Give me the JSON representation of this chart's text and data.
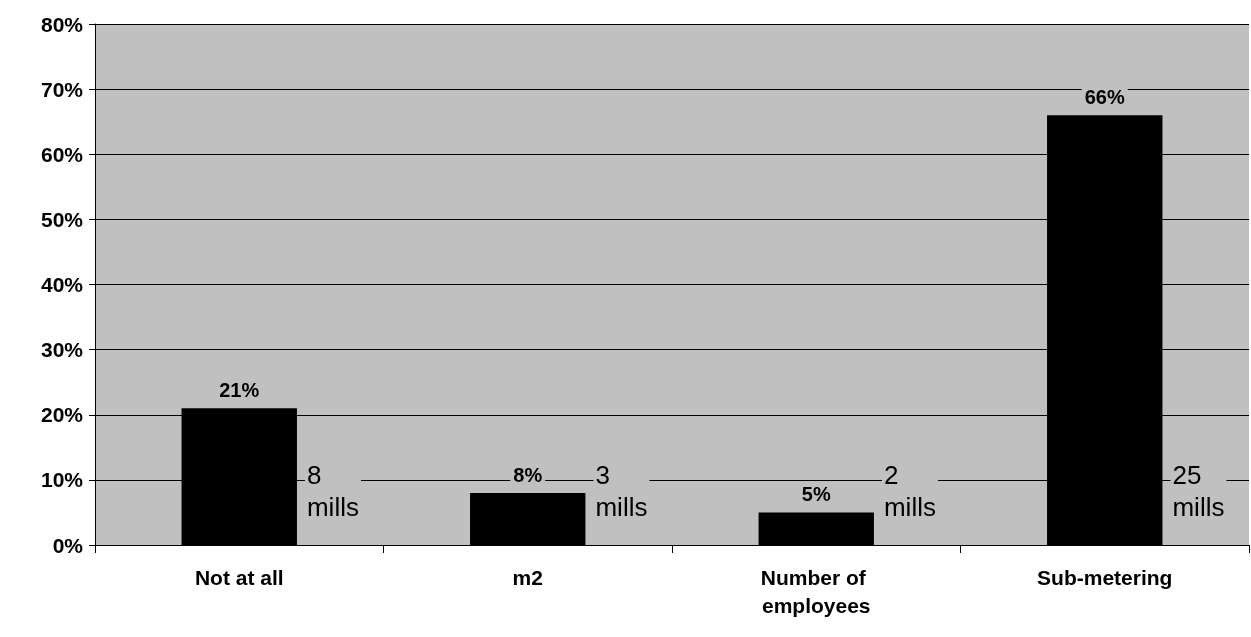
{
  "chart_data": {
    "type": "bar",
    "categories": [
      "Not at all",
      "m2",
      "Number of employees",
      "Sub-metering"
    ],
    "values": [
      21,
      8,
      5,
      66
    ],
    "color": "#000000",
    "value_labels": [
      "21%",
      "8%",
      "5%",
      "66%"
    ],
    "ylim": [
      0,
      80
    ],
    "yticks": [
      {
        "value": 0,
        "label": "0%"
      },
      {
        "value": 10,
        "label": "10%"
      },
      {
        "value": 20,
        "label": "20%"
      },
      {
        "value": 30,
        "label": "30%"
      },
      {
        "value": 40,
        "label": "40%"
      },
      {
        "value": 50,
        "label": "50%"
      },
      {
        "value": 60,
        "label": "60%"
      },
      {
        "value": 70,
        "label": "70%"
      },
      {
        "value": 80,
        "label": "80%"
      }
    ],
    "grid": "y",
    "annotations": [
      "8\nmills",
      "3\nmills",
      "2\nmills",
      "25\nmills"
    ]
  }
}
